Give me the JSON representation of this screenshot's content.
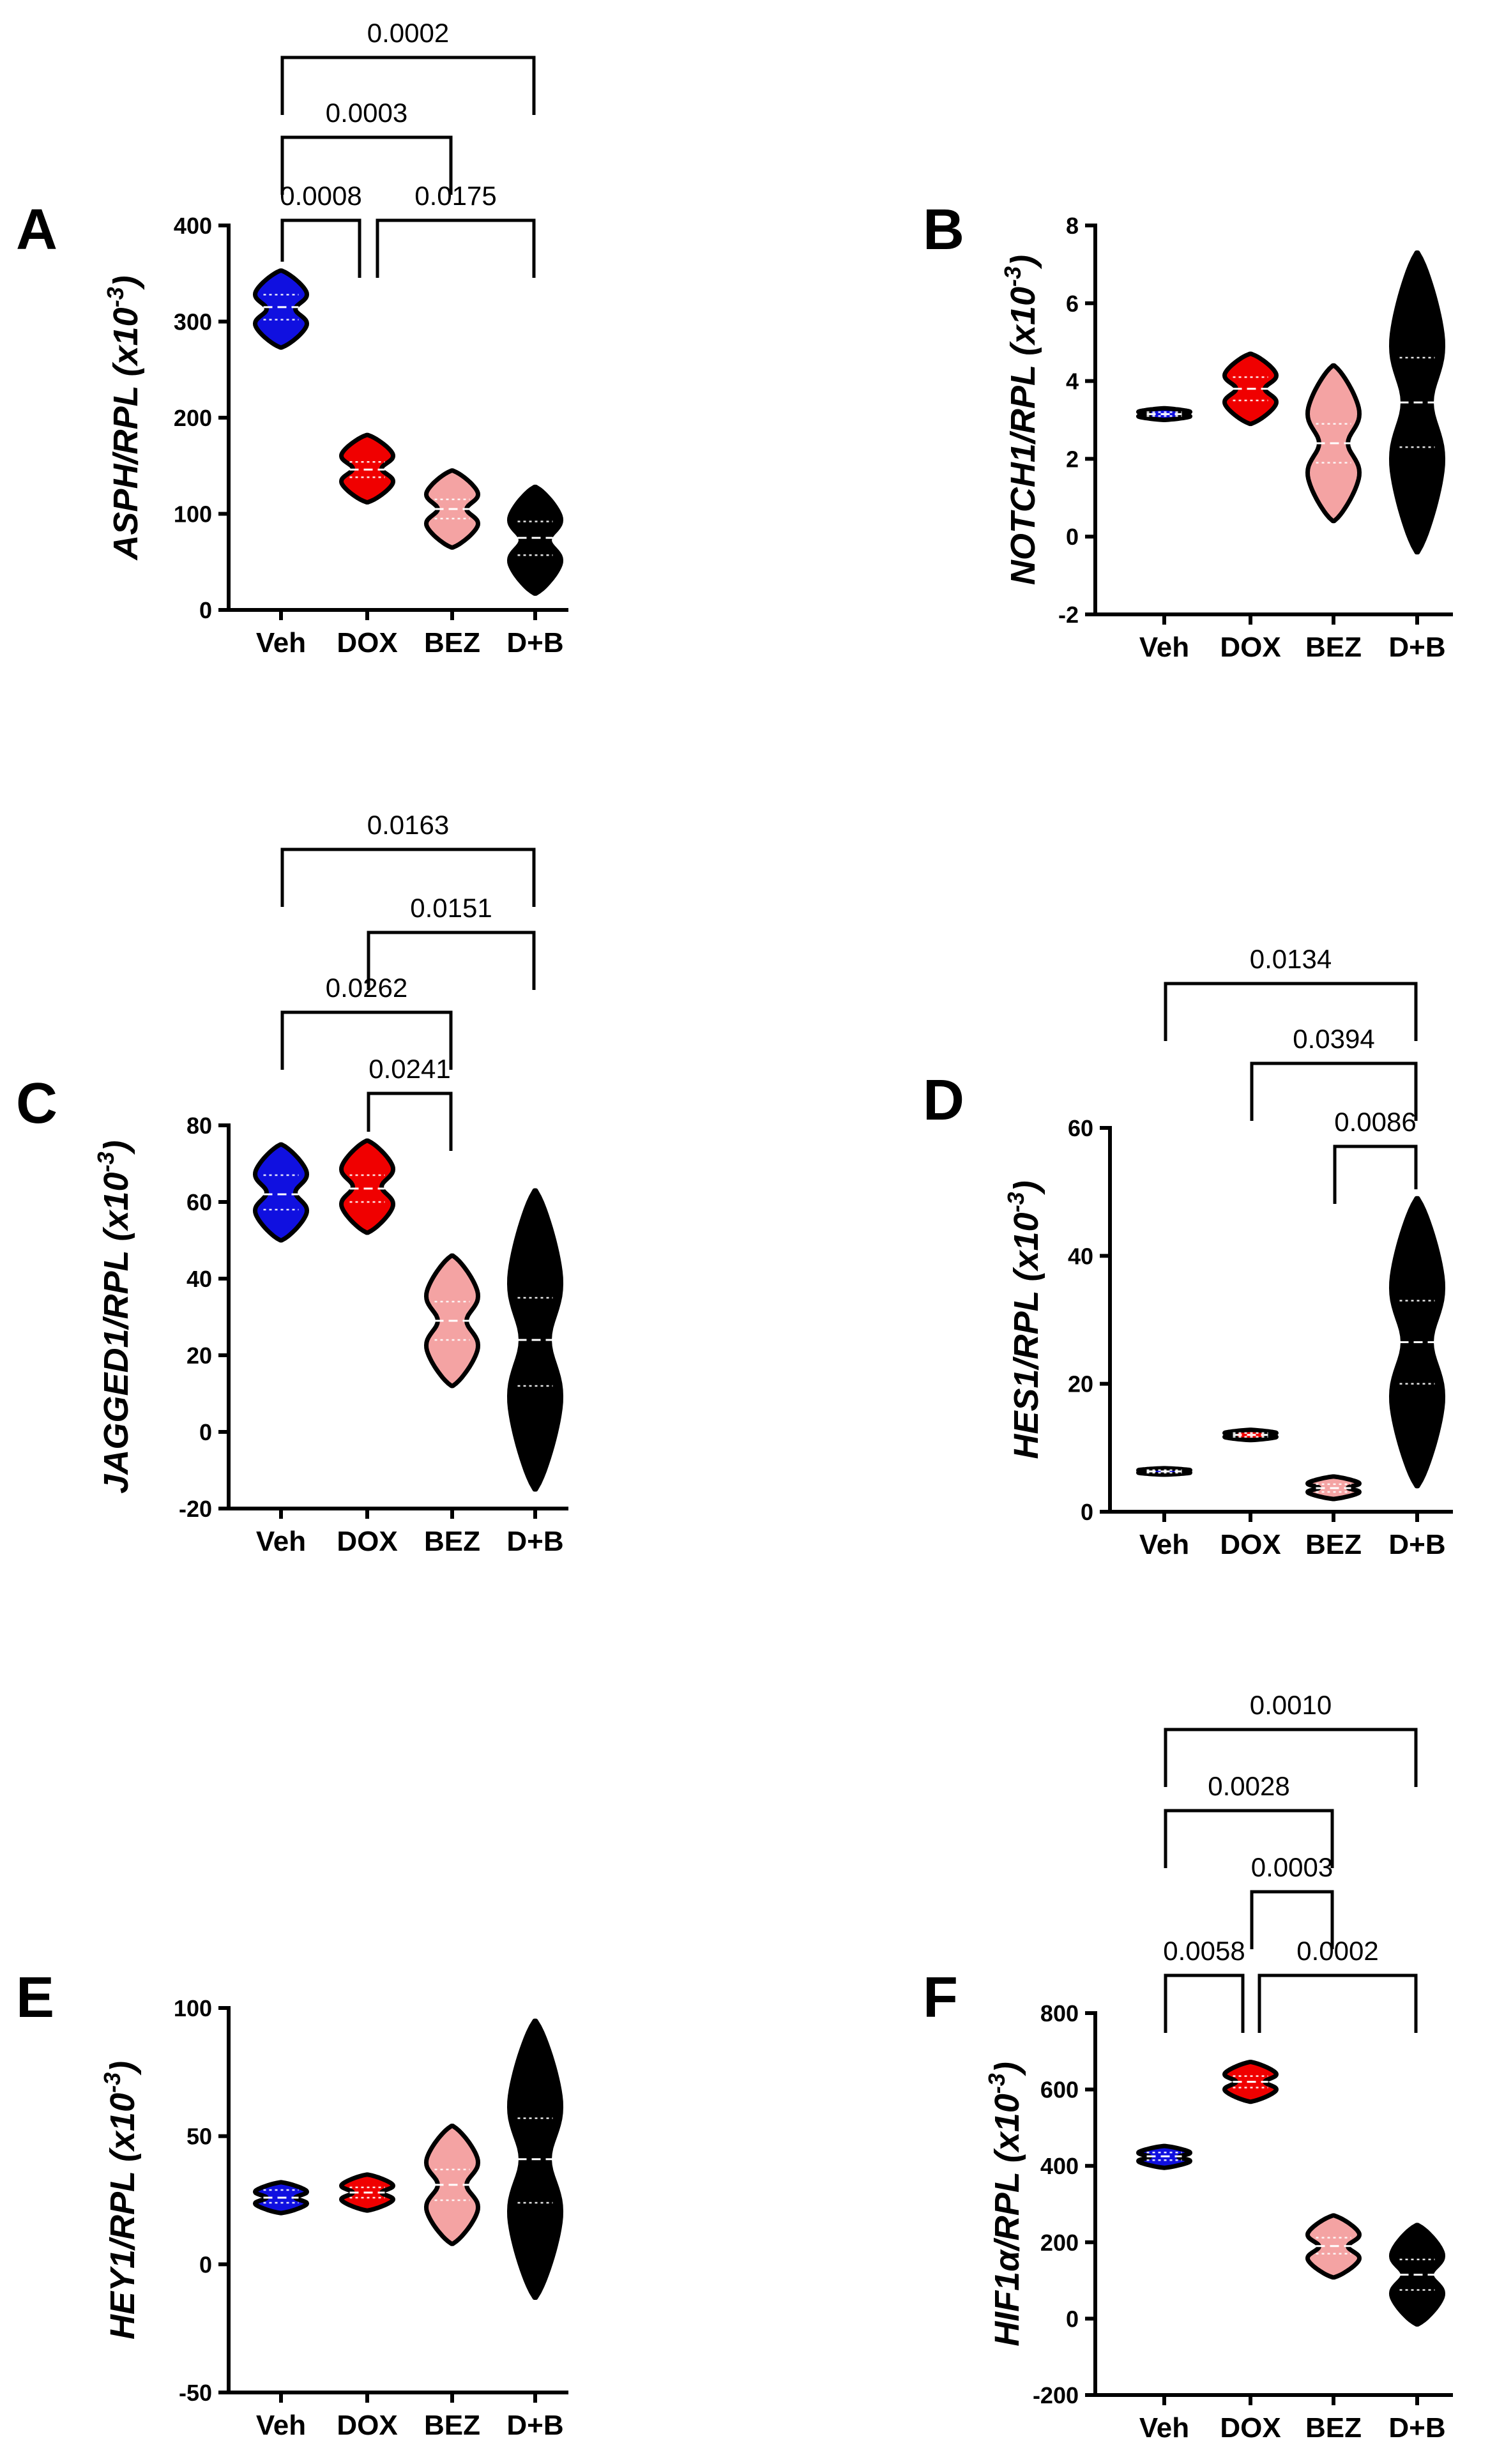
{
  "colors": {
    "Veh": "#1010e0",
    "DOX": "#f00000",
    "BEZ": "#f4a3a3",
    "D+B": "#000000"
  },
  "chart_data": [
    {
      "type": "violin",
      "letter": "A",
      "ylabel_main": "ASPH/RPL",
      "ylabel_unit": "(x10",
      "ylabel_exp": "-3",
      "ylabel_close": ")",
      "ylim": [
        0,
        400
      ],
      "yticks": [
        "0",
        "100",
        "200",
        "300",
        "400"
      ],
      "categories": [
        "Veh",
        "DOX",
        "BEZ",
        "D+B"
      ],
      "violins": [
        {
          "name": "Veh",
          "min": 273,
          "max": 353,
          "median": 315,
          "q1": 302,
          "q3": 328
        },
        {
          "name": "DOX",
          "min": 112,
          "max": 182,
          "median": 146,
          "q1": 138,
          "q3": 154
        },
        {
          "name": "BEZ",
          "min": 65,
          "max": 145,
          "median": 105,
          "q1": 95,
          "q3": 115
        },
        {
          "name": "D+B",
          "min": 17,
          "max": 128,
          "median": 75,
          "q1": 57,
          "q3": 92
        }
      ],
      "comparisons": [
        {
          "from": "Veh",
          "to": "D+B",
          "p": "0.0002"
        },
        {
          "from": "Veh",
          "to": "BEZ",
          "p": "0.0003"
        },
        {
          "from": "Veh",
          "to": "DOX",
          "p": "0.0008"
        },
        {
          "from": "DOX",
          "to": "D+B",
          "p": "0.0175"
        }
      ]
    },
    {
      "type": "violin",
      "letter": "B",
      "ylabel_main": "NOTCH1/RPL",
      "ylabel_unit": "(x10",
      "ylabel_exp": "-3",
      "ylabel_close": ")",
      "ylim": [
        -2,
        8
      ],
      "yticks": [
        "-2",
        "0",
        "2",
        "4",
        "6",
        "8"
      ],
      "categories": [
        "Veh",
        "DOX",
        "BEZ",
        "D+B"
      ],
      "violins": [
        {
          "name": "Veh",
          "min": 3.0,
          "max": 3.3,
          "median": 3.15,
          "q1": 3.1,
          "q3": 3.2
        },
        {
          "name": "DOX",
          "min": 2.9,
          "max": 4.7,
          "median": 3.8,
          "q1": 3.5,
          "q3": 4.1
        },
        {
          "name": "BEZ",
          "min": 0.4,
          "max": 4.4,
          "median": 2.4,
          "q1": 1.9,
          "q3": 2.9
        },
        {
          "name": "D+B",
          "min": -0.4,
          "max": 7.3,
          "median": 3.45,
          "q1": 2.3,
          "q3": 4.6
        }
      ],
      "comparisons": []
    },
    {
      "type": "violin",
      "letter": "C",
      "ylabel_main": "JAGGED1/RPL",
      "ylabel_unit": "(x10",
      "ylabel_exp": "-3",
      "ylabel_close": ")",
      "ylim": [
        -20,
        80
      ],
      "yticks": [
        "-20",
        "0",
        "20",
        "40",
        "60",
        "80"
      ],
      "categories": [
        "Veh",
        "DOX",
        "BEZ",
        "D+B"
      ],
      "violins": [
        {
          "name": "Veh",
          "min": 50,
          "max": 75,
          "median": 62,
          "q1": 58,
          "q3": 67
        },
        {
          "name": "DOX",
          "min": 52,
          "max": 76,
          "median": 63.5,
          "q1": 60,
          "q3": 67
        },
        {
          "name": "BEZ",
          "min": 12,
          "max": 46,
          "median": 29,
          "q1": 24,
          "q3": 34
        },
        {
          "name": "D+B",
          "min": -15,
          "max": 63,
          "median": 24,
          "q1": 12,
          "q3": 35
        }
      ],
      "comparisons": [
        {
          "from": "Veh",
          "to": "D+B",
          "p": "0.0163"
        },
        {
          "from": "DOX",
          "to": "D+B",
          "p": "0.0151"
        },
        {
          "from": "Veh",
          "to": "BEZ",
          "p": "0.0262"
        },
        {
          "from": "DOX",
          "to": "BEZ",
          "p": "0.0241"
        }
      ]
    },
    {
      "type": "violin",
      "letter": "D",
      "ylabel_main": "HES1/RPL",
      "ylabel_unit": "(x10",
      "ylabel_exp": "-3",
      "ylabel_close": ")",
      "ylim": [
        0,
        60
      ],
      "yticks": [
        "0",
        "20",
        "40",
        "60"
      ],
      "categories": [
        "Veh",
        "DOX",
        "BEZ",
        "D+B"
      ],
      "violins": [
        {
          "name": "Veh",
          "min": 5.8,
          "max": 6.8,
          "median": 6.3,
          "q1": 6.1,
          "q3": 6.5
        },
        {
          "name": "DOX",
          "min": 11.2,
          "max": 12.8,
          "median": 12,
          "q1": 11.7,
          "q3": 12.3
        },
        {
          "name": "BEZ",
          "min": 2.0,
          "max": 5.5,
          "median": 3.7,
          "q1": 3.1,
          "q3": 4.3
        },
        {
          "name": "D+B",
          "min": 4,
          "max": 49,
          "median": 26.5,
          "q1": 20,
          "q3": 33
        }
      ],
      "comparisons": [
        {
          "from": "Veh",
          "to": "D+B",
          "p": "0.0134"
        },
        {
          "from": "DOX",
          "to": "D+B",
          "p": "0.0394"
        },
        {
          "from": "BEZ",
          "to": "D+B",
          "p": "0.0086"
        }
      ]
    },
    {
      "type": "violin",
      "letter": "E",
      "ylabel_main": "HEY1/RPL",
      "ylabel_unit": "(x10",
      "ylabel_exp": "-3",
      "ylabel_close": ")",
      "ylim": [
        -50,
        100
      ],
      "yticks": [
        "-50",
        "0",
        "50",
        "100"
      ],
      "categories": [
        "Veh",
        "DOX",
        "BEZ",
        "D+B"
      ],
      "violins": [
        {
          "name": "Veh",
          "min": 20,
          "max": 32,
          "median": 26,
          "q1": 24,
          "q3": 29
        },
        {
          "name": "DOX",
          "min": 21,
          "max": 35,
          "median": 28,
          "q1": 26,
          "q3": 30
        },
        {
          "name": "BEZ",
          "min": 8,
          "max": 54,
          "median": 31,
          "q1": 25,
          "q3": 37
        },
        {
          "name": "D+B",
          "min": -13,
          "max": 95,
          "median": 41,
          "q1": 24,
          "q3": 57
        }
      ],
      "comparisons": []
    },
    {
      "type": "violin",
      "letter": "F",
      "ylabel_main": "HIF1α/RPL",
      "ylabel_unit": "(x10",
      "ylabel_exp": "-3",
      "ylabel_close": ")",
      "ylim": [
        -200,
        800
      ],
      "yticks": [
        "-200",
        "0",
        "200",
        "400",
        "600",
        "800"
      ],
      "categories": [
        "Veh",
        "DOX",
        "BEZ",
        "D+B"
      ],
      "violins": [
        {
          "name": "Veh",
          "min": 395,
          "max": 452,
          "median": 425,
          "q1": 415,
          "q3": 435
        },
        {
          "name": "DOX",
          "min": 568,
          "max": 672,
          "median": 620,
          "q1": 605,
          "q3": 635
        },
        {
          "name": "BEZ",
          "min": 108,
          "max": 270,
          "median": 190,
          "q1": 170,
          "q3": 212
        },
        {
          "name": "D+B",
          "min": -15,
          "max": 245,
          "median": 115,
          "q1": 75,
          "q3": 155
        }
      ],
      "comparisons": [
        {
          "from": "Veh",
          "to": "D+B",
          "p": "0.0010"
        },
        {
          "from": "Veh",
          "to": "BEZ",
          "p": "0.0028"
        },
        {
          "from": "DOX",
          "to": "BEZ",
          "p": "0.0003"
        },
        {
          "from": "Veh",
          "to": "DOX",
          "p": "0.0058"
        },
        {
          "from": "DOX",
          "to": "D+B",
          "p": "0.0002"
        }
      ]
    }
  ]
}
